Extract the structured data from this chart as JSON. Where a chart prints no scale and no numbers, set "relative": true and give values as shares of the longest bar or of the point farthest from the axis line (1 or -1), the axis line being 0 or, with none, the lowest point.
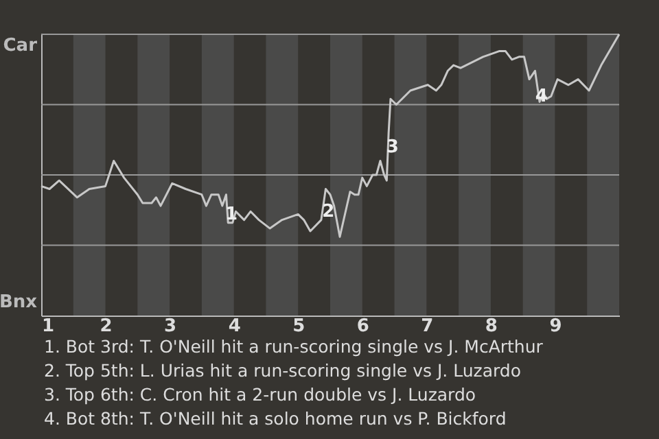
{
  "chart_data": {
    "type": "line",
    "x": [
      1.0,
      1.13,
      1.28,
      1.56,
      1.75,
      2.0,
      2.13,
      2.29,
      2.5,
      2.58,
      2.72,
      2.79,
      2.86,
      3.04,
      3.25,
      3.5,
      3.57,
      3.65,
      3.76,
      3.82,
      3.88,
      3.91,
      3.98,
      4.03,
      4.16,
      4.26,
      4.39,
      4.56,
      4.75,
      5.0,
      5.09,
      5.19,
      5.36,
      5.43,
      5.5,
      5.56,
      5.65,
      5.81,
      5.88,
      5.94,
      6.0,
      6.07,
      6.16,
      6.22,
      6.28,
      6.34,
      6.38,
      6.41,
      6.44,
      6.53,
      6.75,
      7.02,
      7.15,
      7.23,
      7.33,
      7.42,
      7.53,
      7.88,
      8.13,
      8.23,
      8.33,
      8.44,
      8.52,
      8.6,
      8.69,
      8.76,
      8.82,
      8.87,
      8.94,
      9.04,
      9.21,
      9.36,
      9.53,
      9.72,
      10.0
    ],
    "series": [
      {
        "color": "#c8c8c8",
        "values": [
          0.46,
          0.45,
          0.48,
          0.42,
          0.45,
          0.46,
          0.55,
          0.49,
          0.43,
          0.4,
          0.4,
          0.42,
          0.39,
          0.47,
          0.45,
          0.43,
          0.39,
          0.43,
          0.43,
          0.39,
          0.43,
          0.33,
          0.33,
          0.37,
          0.34,
          0.37,
          0.34,
          0.31,
          0.34,
          0.36,
          0.34,
          0.3,
          0.34,
          0.45,
          0.43,
          0.39,
          0.28,
          0.44,
          0.43,
          0.43,
          0.49,
          0.46,
          0.5,
          0.5,
          0.55,
          0.5,
          0.48,
          0.65,
          0.77,
          0.75,
          0.8,
          0.82,
          0.8,
          0.82,
          0.87,
          0.89,
          0.88,
          0.92,
          0.94,
          0.94,
          0.91,
          0.92,
          0.92,
          0.84,
          0.87,
          0.76,
          0.79,
          0.77,
          0.78,
          0.84,
          0.82,
          0.84,
          0.8,
          0.89,
          1.0
        ]
      }
    ],
    "relative": true,
    "xlim": [
      1,
      10
    ],
    "xticks": [
      1,
      2,
      3,
      4,
      5,
      6,
      7,
      8,
      9
    ],
    "marker": "none",
    "line_style": "solid",
    "ref_lines": [
      {
        "axis": "y",
        "value": 0.25,
        "color": "#999999"
      },
      {
        "axis": "y",
        "value": 0.5,
        "color": "#999999"
      },
      {
        "axis": "y",
        "value": 0.75,
        "color": "#999999"
      },
      {
        "axis": "y",
        "value": 1,
        "color": "#999999"
      }
    ],
    "bands": [
      {
        "axis": "x",
        "from": 1.5,
        "to": 2,
        "color": "#4a4a49"
      },
      {
        "axis": "x",
        "from": 2.5,
        "to": 3,
        "color": "#4a4a49"
      },
      {
        "axis": "x",
        "from": 3.5,
        "to": 4,
        "color": "#4a4a49"
      },
      {
        "axis": "x",
        "from": 4.5,
        "to": 5,
        "color": "#4a4a49"
      },
      {
        "axis": "x",
        "from": 5.5,
        "to": 6,
        "color": "#4a4a49"
      },
      {
        "axis": "x",
        "from": 6.5,
        "to": 7,
        "color": "#4a4a49"
      },
      {
        "axis": "x",
        "from": 7.5,
        "to": 8,
        "color": "#4a4a49"
      },
      {
        "axis": "x",
        "from": 8.5,
        "to": 9,
        "color": "#4a4a49"
      },
      {
        "axis": "x",
        "from": 9.5,
        "to": 10,
        "color": "#4a4a49"
      }
    ],
    "annotations": [
      "Car",
      "Bnx",
      {
        "text": "1",
        "x": 3.96,
        "y": 0.36
      },
      {
        "text": "2",
        "x": 5.47,
        "y": 0.37
      },
      {
        "text": "3",
        "x": 6.47,
        "y": 0.6
      },
      {
        "text": "4",
        "x": 8.79,
        "y": 0.78
      },
      "1. Bot 3rd: T. O'Neill hit a run-scoring single vs J. McArthur",
      "2. Top 5th: L. Urias hit a run-scoring single vs J. Luzardo",
      "3. Top 6th: C. Cron hit a 2-run double vs J. Luzardo",
      "4. Bot 8th: T. O'Neill hit a solo home run vs P. Bickford"
    ]
  }
}
